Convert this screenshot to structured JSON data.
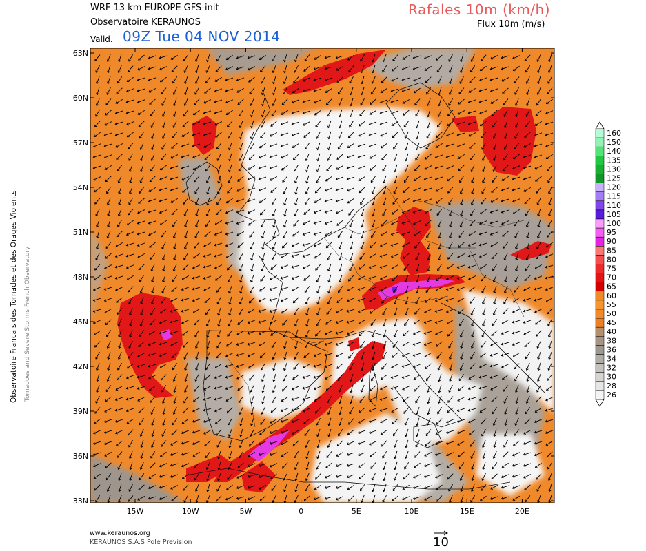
{
  "header": {
    "model_line": "WRF 13 km EUROPE   GFS-init",
    "observatory": "Observatoire KERAUNOS",
    "valid_prefix": "Valid.",
    "valid_date": "09Z Tue 04 NOV 2014",
    "parameter_title": "Rafales 10m (km/h)",
    "parameter_subtitle": "Flux 10m (m/s)"
  },
  "side_credit": {
    "line1": "Observatoire Francais des Tornades et des Orages Violents",
    "line2": "Tornadoes and Severe Storms French Observatory"
  },
  "footer": {
    "website": "www.keraunos.org",
    "company": "KERAUNOS S.A.S Pole Prevision"
  },
  "map": {
    "lat_labels": [
      "63N",
      "60N",
      "57N",
      "54N",
      "51N",
      "48N",
      "45N",
      "42N",
      "39N",
      "36N",
      "33N"
    ],
    "lon_labels": [
      "15W",
      "10W",
      "5W",
      "0",
      "5E",
      "10E",
      "15E",
      "20E"
    ],
    "wind_reference_value": "10",
    "wind_direction_deg": 135
  },
  "legend": {
    "labels": [
      "160",
      "150",
      "140",
      "135",
      "130",
      "125",
      "120",
      "115",
      "110",
      "105",
      "100",
      "95",
      "90",
      "85",
      "80",
      "75",
      "70",
      "65",
      "60",
      "55",
      "50",
      "45",
      "40",
      "38",
      "36",
      "34",
      "32",
      "30",
      "28",
      "26"
    ],
    "colors": [
      "#b4fcd6",
      "#90f4b4",
      "#52e476",
      "#22c844",
      "#18b030",
      "#12962a",
      "#c8b0fc",
      "#a47cf4",
      "#8046ec",
      "#5a1cdc",
      "#fc9cfc",
      "#f45ef4",
      "#e424e4",
      "#fc7676",
      "#f44e4e",
      "#ec2c2c",
      "#e41414",
      "#d40000",
      "#f08c28",
      "#f7962e",
      "#f28a2a",
      "#ec8024",
      "#b4906c",
      "#a89484",
      "#9c9890",
      "#b0aca6",
      "#c4c2bc",
      "#d6d4d0",
      "#e8e6e4",
      "#f4f4f4"
    ]
  }
}
